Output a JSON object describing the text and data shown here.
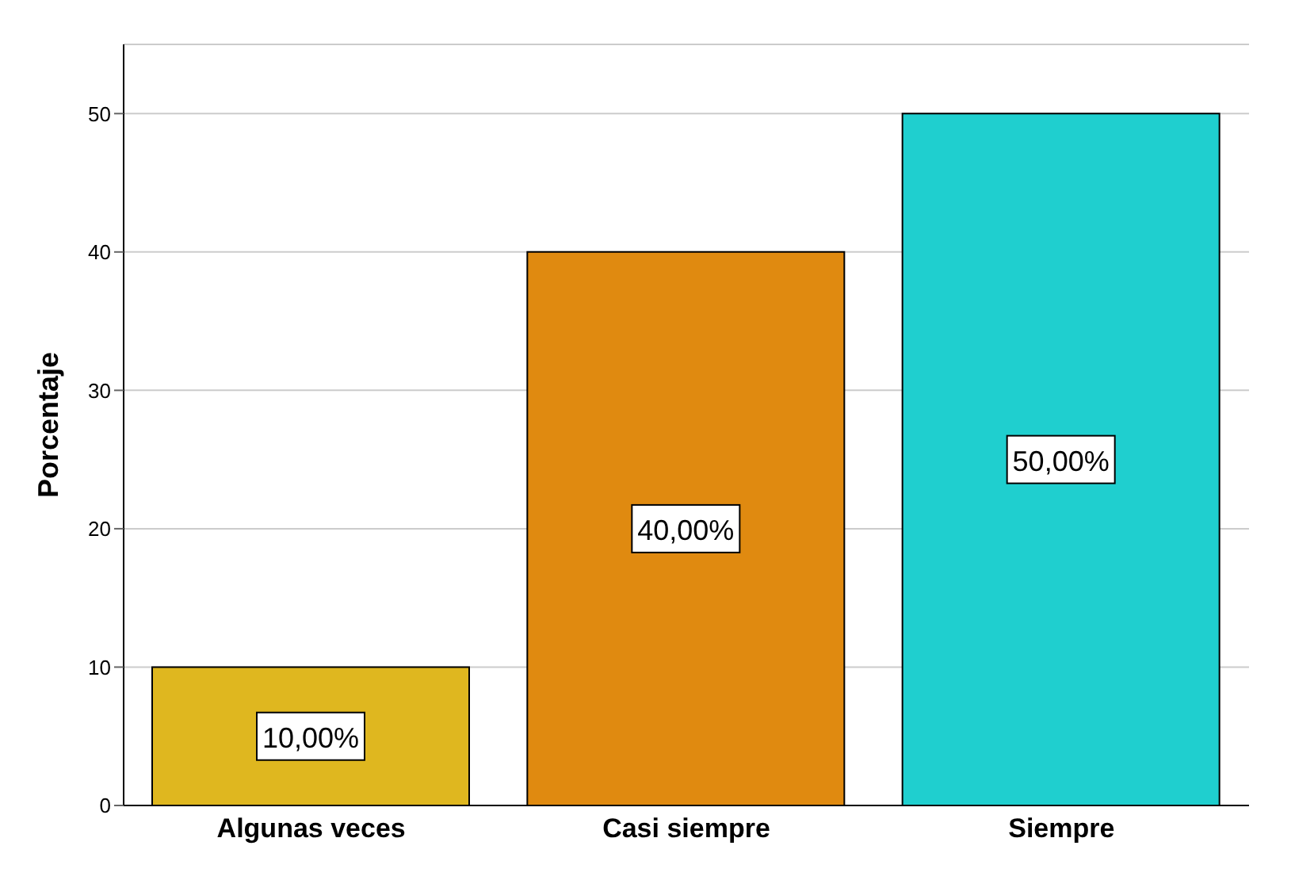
{
  "chart_data": {
    "type": "bar",
    "ylabel": "Porcentaje",
    "categories": [
      "Algunas veces",
      "Casi siempre",
      "Siempre"
    ],
    "values": [
      10,
      40,
      50
    ],
    "colors": [
      "#dfb71f",
      "#e08a10",
      "#1fcfcf"
    ],
    "value_labels": [
      "10,00%",
      "40,00%",
      "50,00%"
    ],
    "ylim": [
      0,
      55
    ],
    "yticks": [
      0,
      10,
      20,
      30,
      40,
      50
    ],
    "grid": "y"
  }
}
